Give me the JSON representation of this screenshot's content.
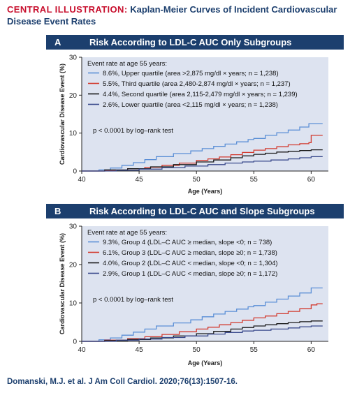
{
  "title": {
    "kicker": "CENTRAL ILLUSTRATION:",
    "line1": "Kaplan-Meier Curves of Incident Cardiovascular",
    "line2": "Disease Event Rates"
  },
  "citation": "Domanski, M.J. et al. J Am Coll Cardiol. 2020;76(13):1507-16.",
  "colors": {
    "header": "#1c3f6e",
    "plot_bg": "#dde3f0",
    "kicker": "#c8102e",
    "blue": "#5b8fd6",
    "red": "#d23a2e",
    "black": "#1a1a1a",
    "navy": "#3a4a8c"
  },
  "chart_data": [
    {
      "type": "line",
      "panel_letter": "A",
      "title": "Risk According to LDL-C AUC Only Subgroups",
      "xlabel": "Age (Years)",
      "ylabel": "Cardiovascular Disease Event (%)",
      "xlim": [
        40,
        61.5
      ],
      "ylim": [
        0,
        30
      ],
      "xticks": [
        40,
        45,
        50,
        55,
        60
      ],
      "yticks": [
        0,
        10,
        20,
        30
      ],
      "legend_title": "Event rate at age 55 years:",
      "annotation": "p < 0.0001 by log–rank test",
      "series": [
        {
          "name": "8.6%, Upper quartile (area >2,875 mg/dl × years; n = 1,238)",
          "color": "#5b8fd6",
          "x": [
            40,
            41.5,
            42.5,
            43.5,
            44.5,
            45.5,
            46.5,
            48,
            49.5,
            50.5,
            51.5,
            52.5,
            53.5,
            54.5,
            55,
            56,
            57,
            58,
            59,
            59.8,
            60.5,
            61
          ],
          "y": [
            0,
            0.3,
            0.8,
            1.5,
            2.2,
            3.0,
            3.8,
            4.6,
            5.3,
            5.9,
            6.5,
            7.1,
            7.7,
            8.3,
            8.6,
            9.4,
            10.1,
            10.8,
            11.6,
            12.5,
            12.5,
            12.5
          ]
        },
        {
          "name": "5.5%, Third quartile (area 2,480-2,874 mg/dl × years; n = 1,237)",
          "color": "#d23a2e",
          "x": [
            40,
            42,
            44,
            45.5,
            47,
            48.5,
            50,
            51,
            52,
            53,
            54,
            55,
            56,
            57,
            58,
            59,
            59.8,
            60,
            60.5,
            61
          ],
          "y": [
            0,
            0.2,
            0.6,
            1.0,
            1.5,
            2.1,
            2.8,
            3.2,
            3.7,
            4.3,
            4.9,
            5.5,
            5.9,
            6.4,
            6.9,
            7.2,
            7.5,
            9.4,
            9.4,
            9.4
          ]
        },
        {
          "name": "4.4%, Second quartile (area 2,115-2,479 mg/dl × years; n = 1,239)",
          "color": "#1a1a1a",
          "x": [
            40,
            42,
            44,
            46,
            48,
            50,
            51.5,
            53,
            54,
            55,
            56,
            57,
            58,
            59,
            60,
            61
          ],
          "y": [
            0,
            0.3,
            0.6,
            1.1,
            1.7,
            2.4,
            2.9,
            3.5,
            4.0,
            4.4,
            4.7,
            5.0,
            5.2,
            5.4,
            5.6,
            5.6
          ]
        },
        {
          "name": "2.6%, Lower quartile (area <2,115 mg/dl × years; n = 1,238)",
          "color": "#3a4a8c",
          "x": [
            40,
            43,
            45,
            47,
            49,
            51,
            52.5,
            54,
            55,
            56.5,
            58,
            59,
            60,
            61
          ],
          "y": [
            0,
            0.2,
            0.5,
            0.9,
            1.3,
            1.7,
            2.1,
            2.4,
            2.6,
            2.9,
            3.2,
            3.5,
            3.8,
            3.8
          ]
        }
      ]
    },
    {
      "type": "line",
      "panel_letter": "B",
      "title": "Risk According to LDL-C AUC and Slope Subgroups",
      "xlabel": "Age (Years)",
      "ylabel": "Cardiovascular Disease Event (%)",
      "xlim": [
        40,
        61.5
      ],
      "ylim": [
        0,
        30
      ],
      "xticks": [
        40,
        45,
        50,
        55,
        60
      ],
      "yticks": [
        0,
        10,
        20,
        30
      ],
      "legend_title": "Event rate at age 55 years:",
      "annotation": "p < 0.0001 by log–rank test",
      "series": [
        {
          "name": "9.3%, Group 4 (LDL–C AUC ≥ median, slope <0; n = 738)",
          "color": "#5b8fd6",
          "x": [
            40,
            41.5,
            42.5,
            43.5,
            44.5,
            45.5,
            46.5,
            48,
            49.5,
            50.5,
            51.5,
            52.5,
            53.5,
            54.5,
            55,
            56,
            57,
            58,
            59,
            60,
            60.5,
            61
          ],
          "y": [
            0,
            0.4,
            0.9,
            1.6,
            2.4,
            3.2,
            4.0,
            4.8,
            5.6,
            6.4,
            7.1,
            7.8,
            8.4,
            9.0,
            9.3,
            10.2,
            11.0,
            11.8,
            12.6,
            13.9,
            13.9,
            13.9
          ]
        },
        {
          "name": "6.1%, Group 3 (LDL–C AUC ≥ median, slope ≥0; n = 1,738)",
          "color": "#d23a2e",
          "x": [
            40,
            42,
            44,
            45.5,
            47,
            48.5,
            50,
            51,
            52,
            53,
            54,
            55,
            56,
            57,
            58,
            59,
            60,
            60.5,
            61
          ],
          "y": [
            0,
            0.3,
            0.7,
            1.2,
            1.8,
            2.5,
            3.2,
            3.7,
            4.3,
            4.9,
            5.5,
            6.1,
            6.6,
            7.2,
            7.8,
            8.5,
            9.5,
            9.8,
            9.8
          ]
        },
        {
          "name": "4.0%, Group 2 (LDL–C AUC < median, slope <0; n = 1,304)",
          "color": "#1a1a1a",
          "x": [
            40,
            42,
            44,
            46,
            48,
            50,
            51.5,
            53,
            54,
            55,
            56,
            57,
            58,
            59,
            60,
            61
          ],
          "y": [
            0,
            0.2,
            0.5,
            0.9,
            1.4,
            2.0,
            2.6,
            3.2,
            3.6,
            4.0,
            4.3,
            4.6,
            4.9,
            5.1,
            5.3,
            5.3
          ]
        },
        {
          "name": "2.9%, Group 1 (LDL–C AUC < median, slope ≥0; n = 1,172)",
          "color": "#3a4a8c",
          "x": [
            40,
            43,
            45,
            47,
            49,
            51,
            52.5,
            54,
            55,
            56.5,
            58,
            59,
            60,
            61
          ],
          "y": [
            0,
            0.3,
            0.6,
            1.0,
            1.4,
            1.9,
            2.3,
            2.7,
            2.9,
            3.2,
            3.5,
            3.8,
            4.0,
            4.0
          ]
        }
      ]
    }
  ]
}
